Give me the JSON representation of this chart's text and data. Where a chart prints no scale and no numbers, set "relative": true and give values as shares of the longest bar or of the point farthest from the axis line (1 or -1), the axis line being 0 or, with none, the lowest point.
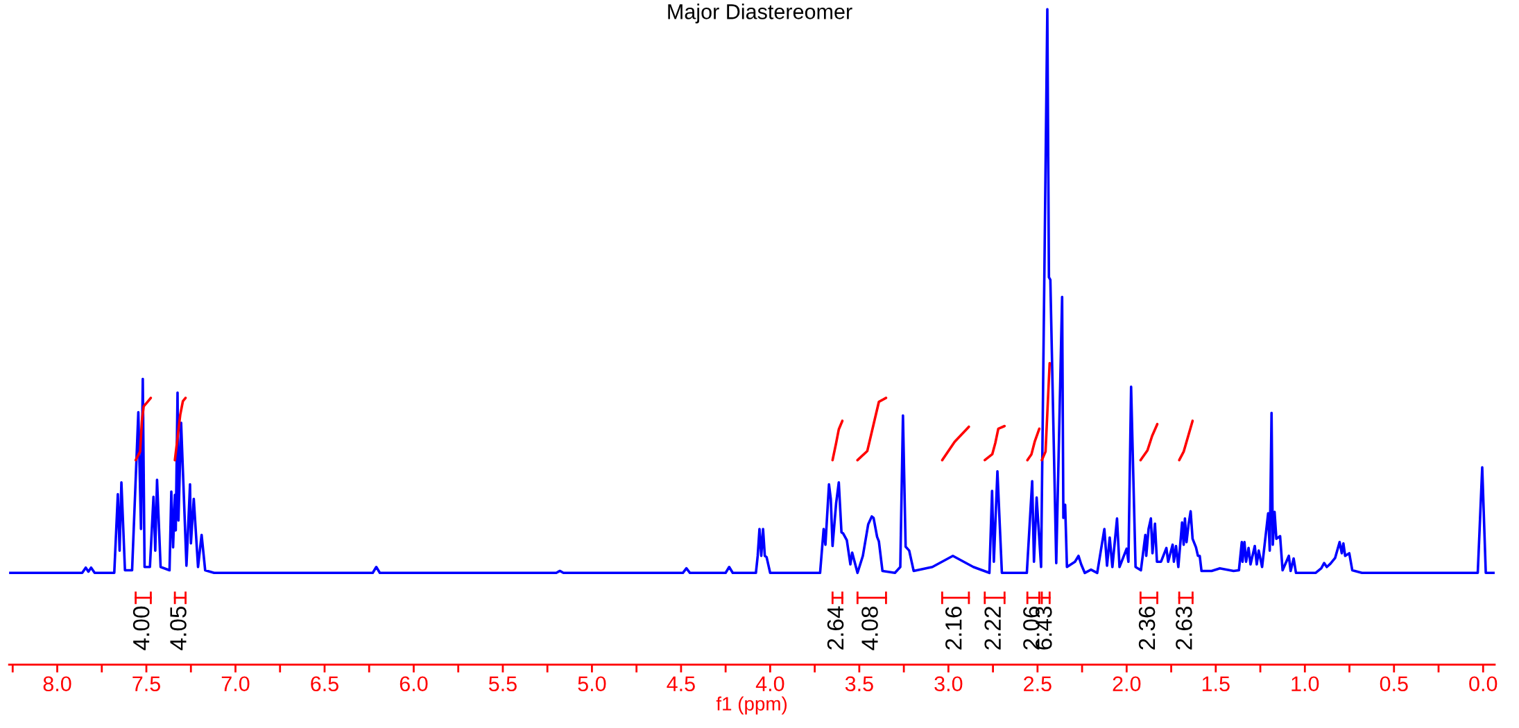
{
  "chart_data": {
    "type": "line",
    "title": "Major Diastereomer",
    "xlabel": "f1 (ppm)",
    "relative": true,
    "marker": "none",
    "line_style": "solid",
    "grid": false,
    "legend": false,
    "tick_labels": "x",
    "xlim": [
      8.27,
      -0.065
    ],
    "xticks": [
      {
        "value": 8.0,
        "label": "8.0"
      },
      {
        "value": 7.5,
        "label": "7.5"
      },
      {
        "value": 7.0,
        "label": "7.0"
      },
      {
        "value": 6.5,
        "label": "6.5"
      },
      {
        "value": 6.0,
        "label": "6.0"
      },
      {
        "value": 5.5,
        "label": "5.5"
      },
      {
        "value": 5.0,
        "label": "5.0"
      },
      {
        "value": 4.5,
        "label": "4.5"
      },
      {
        "value": 4.0,
        "label": "4.0"
      },
      {
        "value": 3.5,
        "label": "3.5"
      },
      {
        "value": 3.0,
        "label": "3.0"
      },
      {
        "value": 2.5,
        "label": "2.5"
      },
      {
        "value": 2.0,
        "label": "2.0"
      },
      {
        "value": 1.5,
        "label": "1.5"
      },
      {
        "value": 1.0,
        "label": "1.0"
      },
      {
        "value": 0.5,
        "label": "0.5"
      },
      {
        "value": 0.0,
        "label": "0.0"
      }
    ],
    "series": [
      {
        "color": "#0000ff",
        "x": [
          8.27,
          7.86,
          7.84,
          7.825,
          7.81,
          7.79,
          7.68,
          7.66,
          7.65,
          7.64,
          7.62,
          7.58,
          7.545,
          7.53,
          7.52,
          7.51,
          7.495,
          7.48,
          7.46,
          7.45,
          7.44,
          7.42,
          7.37,
          7.36,
          7.35,
          7.34,
          7.335,
          7.325,
          7.32,
          7.305,
          7.275,
          7.255,
          7.25,
          7.234,
          7.21,
          7.19,
          7.17,
          7.12,
          6.23,
          6.21,
          6.19,
          5.2,
          5.18,
          5.16,
          4.49,
          4.47,
          4.45,
          4.25,
          4.23,
          4.21,
          4.08,
          4.07,
          4.06,
          4.05,
          4.04,
          4.03,
          4.02,
          4.0,
          3.72,
          3.7,
          3.69,
          3.67,
          3.66,
          3.65,
          3.63,
          3.615,
          3.6,
          3.59,
          3.57,
          3.55,
          3.54,
          3.51,
          3.48,
          3.45,
          3.43,
          3.42,
          3.4,
          3.39,
          3.37,
          3.3,
          3.27,
          3.255,
          3.24,
          3.22,
          3.195,
          3.09,
          2.975,
          2.86,
          2.77,
          2.755,
          2.745,
          2.725,
          2.7,
          2.56,
          2.53,
          2.52,
          2.505,
          2.48,
          2.445,
          2.436,
          2.428,
          2.395,
          2.362,
          2.355,
          2.345,
          2.335,
          2.29,
          2.27,
          2.255,
          2.235,
          2.2,
          2.165,
          2.125,
          2.11,
          2.095,
          2.08,
          2.054,
          2.04,
          2.0,
          1.99,
          1.975,
          1.95,
          1.92,
          1.895,
          1.89,
          1.877,
          1.864,
          1.855,
          1.841,
          1.83,
          1.807,
          1.777,
          1.767,
          1.742,
          1.735,
          1.723,
          1.71,
          1.689,
          1.68,
          1.673,
          1.664,
          1.653,
          1.641,
          1.63,
          1.611,
          1.6,
          1.59,
          1.58,
          1.523,
          1.477,
          1.4,
          1.37,
          1.354,
          1.35,
          1.339,
          1.33,
          1.316,
          1.305,
          1.281,
          1.27,
          1.259,
          1.24,
          1.206,
          1.197,
          1.187,
          1.18,
          1.17,
          1.16,
          1.139,
          1.125,
          1.09,
          1.08,
          1.063,
          1.05,
          0.94,
          0.908,
          0.892,
          0.877,
          0.857,
          0.83,
          0.805,
          0.793,
          0.784,
          0.774,
          0.751,
          0.734,
          0.68,
          0.03,
          0.005,
          -0.015,
          -0.065
        ],
        "values": [
          0.14,
          0.14,
          0.148,
          0.142,
          0.148,
          0.14,
          0.14,
          0.26,
          0.174,
          0.278,
          0.144,
          0.144,
          0.385,
          0.207,
          0.436,
          0.149,
          0.149,
          0.149,
          0.256,
          0.174,
          0.282,
          0.149,
          0.144,
          0.264,
          0.179,
          0.259,
          0.205,
          0.415,
          0.22,
          0.369,
          0.151,
          0.275,
          0.185,
          0.253,
          0.149,
          0.198,
          0.144,
          0.14,
          0.14,
          0.149,
          0.14,
          0.14,
          0.143,
          0.14,
          0.14,
          0.147,
          0.14,
          0.14,
          0.149,
          0.14,
          0.14,
          0.166,
          0.207,
          0.166,
          0.207,
          0.166,
          0.164,
          0.14,
          0.14,
          0.207,
          0.183,
          0.275,
          0.253,
          0.181,
          0.246,
          0.278,
          0.202,
          0.2,
          0.19,
          0.153,
          0.171,
          0.14,
          0.166,
          0.214,
          0.226,
          0.224,
          0.195,
          0.188,
          0.143,
          0.14,
          0.149,
          0.38,
          0.18,
          0.174,
          0.143,
          0.149,
          0.166,
          0.149,
          0.14,
          0.265,
          0.157,
          0.295,
          0.14,
          0.14,
          0.28,
          0.157,
          0.255,
          0.149,
          1.0,
          0.591,
          0.587,
          0.155,
          0.561,
          0.224,
          0.244,
          0.149,
          0.157,
          0.166,
          0.153,
          0.14,
          0.145,
          0.14,
          0.207,
          0.151,
          0.194,
          0.149,
          0.223,
          0.149,
          0.177,
          0.157,
          0.424,
          0.149,
          0.144,
          0.198,
          0.166,
          0.207,
          0.223,
          0.17,
          0.215,
          0.157,
          0.157,
          0.178,
          0.157,
          0.183,
          0.157,
          0.181,
          0.149,
          0.217,
          0.183,
          0.223,
          0.187,
          0.213,
          0.234,
          0.192,
          0.179,
          0.166,
          0.166,
          0.143,
          0.143,
          0.147,
          0.143,
          0.144,
          0.187,
          0.157,
          0.187,
          0.157,
          0.178,
          0.153,
          0.181,
          0.153,
          0.174,
          0.149,
          0.231,
          0.174,
          0.384,
          0.183,
          0.233,
          0.192,
          0.196,
          0.144,
          0.166,
          0.143,
          0.162,
          0.14,
          0.14,
          0.147,
          0.155,
          0.149,
          0.154,
          0.163,
          0.187,
          0.17,
          0.185,
          0.166,
          0.17,
          0.144,
          0.14,
          0.14,
          0.301,
          0.14,
          0.14
        ]
      },
      {
        "color": "#ff0000",
        "x": [
          7.56,
          7.535,
          7.525,
          7.515,
          7.49,
          7.475
        ],
        "values": [
          0.312,
          0.325,
          0.372,
          0.394,
          0.402,
          0.407
        ]
      },
      {
        "color": "#ff0000",
        "x": [
          7.34,
          7.325,
          7.31,
          7.295,
          7.28
        ],
        "values": [
          0.312,
          0.346,
          0.381,
          0.402,
          0.407
        ]
      },
      {
        "color": "#ff0000",
        "x": [
          3.65,
          3.63,
          3.615,
          3.595
        ],
        "values": [
          0.312,
          0.338,
          0.359,
          0.372
        ]
      },
      {
        "color": "#ff0000",
        "x": [
          3.51,
          3.455,
          3.41,
          3.39,
          3.35
        ],
        "values": [
          0.312,
          0.326,
          0.378,
          0.401,
          0.407
        ]
      },
      {
        "color": "#ff0000",
        "x": [
          3.035,
          2.965,
          2.885
        ],
        "values": [
          0.312,
          0.34,
          0.363
        ]
      },
      {
        "color": "#ff0000",
        "x": [
          2.796,
          2.754,
          2.737,
          2.72,
          2.685
        ],
        "values": [
          0.312,
          0.321,
          0.338,
          0.36,
          0.364
        ]
      },
      {
        "color": "#ff0000",
        "x": [
          2.557,
          2.534,
          2.516,
          2.49
        ],
        "values": [
          0.312,
          0.321,
          0.34,
          0.36
        ]
      },
      {
        "color": "#ff0000",
        "x": [
          2.476,
          2.455,
          2.432
        ],
        "values": [
          0.312,
          0.325,
          0.46
        ]
      },
      {
        "color": "#ff0000",
        "x": [
          1.922,
          1.883,
          1.857,
          1.828
        ],
        "values": [
          0.312,
          0.327,
          0.349,
          0.367
        ]
      },
      {
        "color": "#ff0000",
        "x": [
          1.705,
          1.68,
          1.63
        ],
        "values": [
          0.312,
          0.325,
          0.372
        ]
      }
    ],
    "annotations": [
      "4.00",
      "4.05",
      "2.64",
      "4.08",
      "2.16",
      "2.22",
      "2.06",
      "6.43",
      "2.36",
      "2.63"
    ]
  }
}
